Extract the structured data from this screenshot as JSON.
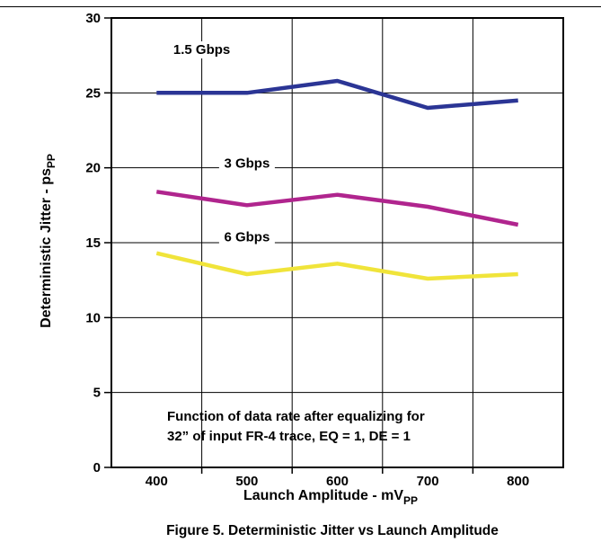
{
  "chart_data": {
    "type": "line",
    "title": "",
    "xlabel": "Launch Amplitude - mV",
    "xlabel_sub": "PP",
    "ylabel": "Deterministic Jitter  - ps",
    "ylabel_sub": "PP",
    "xlim": [
      350,
      850
    ],
    "ylim": [
      0,
      30
    ],
    "xticks": [
      400,
      500,
      600,
      700,
      800
    ],
    "yticks": [
      0,
      5,
      10,
      15,
      20,
      25,
      30
    ],
    "grid": true,
    "series": [
      {
        "name": "1.5 Gbps",
        "color": "#2b3595",
        "x": [
          400,
          500,
          600,
          700,
          800
        ],
        "y": [
          25.0,
          25.0,
          25.8,
          24.0,
          24.5
        ]
      },
      {
        "name": "3 Gbps",
        "color": "#b0258e",
        "x": [
          400,
          500,
          600,
          700,
          800
        ],
        "y": [
          18.4,
          17.5,
          18.2,
          17.4,
          16.2
        ]
      },
      {
        "name": "6 Gbps",
        "color": "#f0e43a",
        "x": [
          400,
          500,
          600,
          700,
          800
        ],
        "y": [
          14.3,
          12.9,
          13.6,
          12.6,
          12.9
        ]
      }
    ],
    "annotation_lines": [
      "Function of data rate after equalizing for",
      "32” of input FR-4 trace, EQ = 1, DE = 1"
    ]
  },
  "caption": "Figure 5. Deterministic Jitter vs Launch Amplitude"
}
